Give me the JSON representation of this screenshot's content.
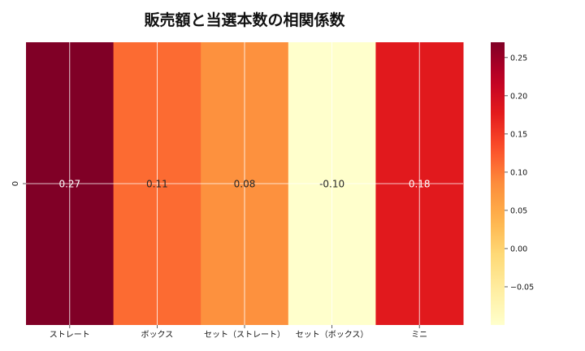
{
  "chart_data": {
    "type": "heatmap",
    "title": "販売額と当選本数の相関係数",
    "columns": [
      "ストレート",
      "ボックス",
      "セット（ストレート）",
      "セット（ボックス）",
      "ミニ"
    ],
    "rows": [
      "0"
    ],
    "values": [
      [
        0.27,
        0.11,
        0.08,
        -0.1,
        0.18
      ]
    ],
    "annotations": [
      "0.27",
      "0.11",
      "0.08",
      "-0.10",
      "0.18"
    ],
    "colormap": "YlOrRd",
    "vmin": -0.1,
    "vmax": 0.27,
    "colorbar_ticks": [
      0.25,
      0.2,
      0.15,
      0.1,
      0.05,
      0.0,
      -0.05
    ],
    "colorbar_tick_labels": [
      "0.25",
      "0.20",
      "0.15",
      "0.10",
      "0.05",
      "0.00",
      "−0.05"
    ],
    "grid": true,
    "grid_color": "#ffffff"
  }
}
